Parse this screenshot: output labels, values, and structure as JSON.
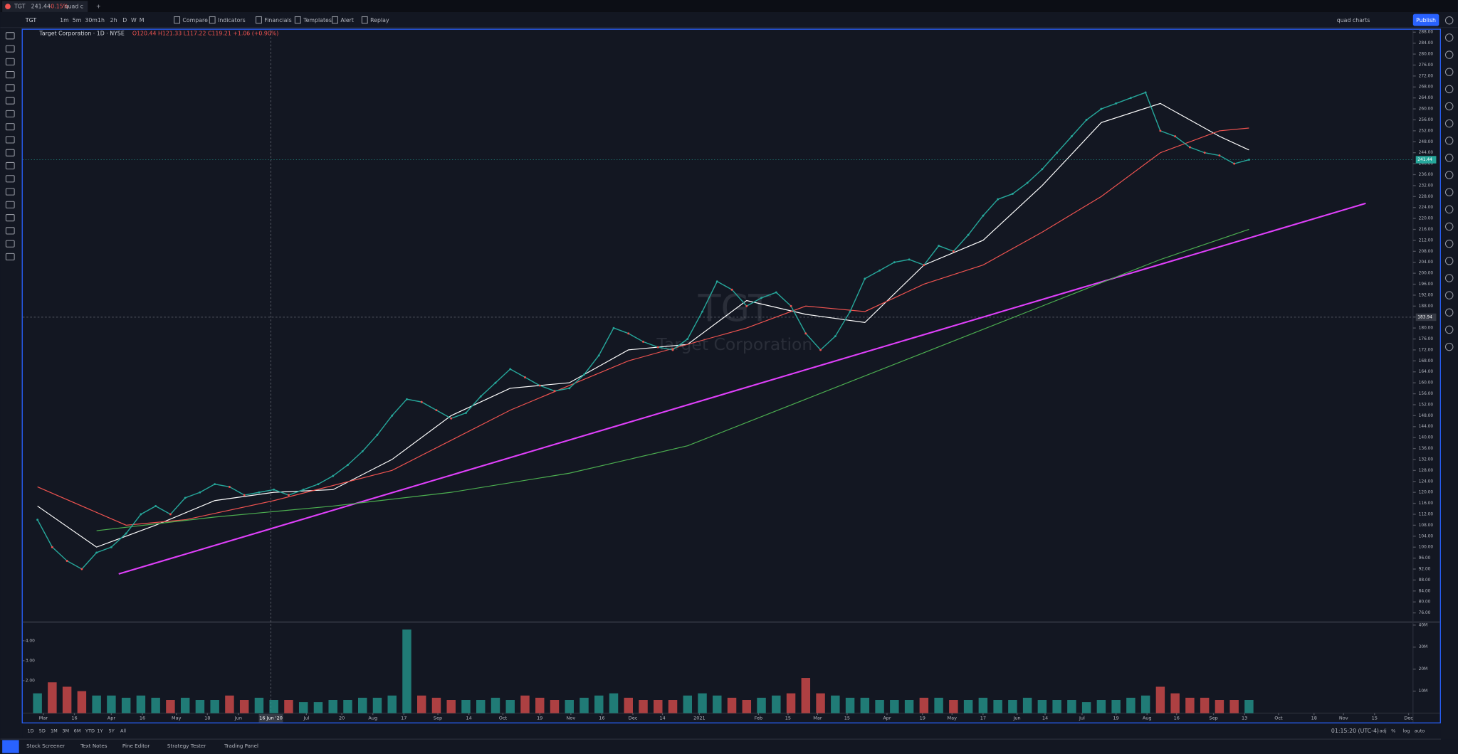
{
  "tab": {
    "symbol": "TGT",
    "price": "241.44",
    "change": "-0.15%",
    "layout": "quad c"
  },
  "toolbar": {
    "symbol": "TGT",
    "intervals": [
      "1m",
      "5m",
      "30m",
      "1h",
      "2h",
      "D",
      "W",
      "M"
    ],
    "buttons": [
      "Compare",
      "Indicators",
      "Financials",
      "Templates",
      "Alert",
      "Replay"
    ],
    "layout_name": "quad charts",
    "publish": "Publish"
  },
  "legend": {
    "title": "Target Corporation · 1D · NYSE",
    "ohlc": "O120.44 H121.33 L117.22 C119.21 +1.06 (+0.90%)"
  },
  "watermark": {
    "symbol": "TGT",
    "name": "Target Corporation"
  },
  "chart_data": [
    {
      "type": "line",
      "x": [
        0,
        1,
        2,
        3,
        4,
        5,
        6,
        7,
        8,
        9,
        10,
        11,
        12,
        13,
        14,
        15,
        16,
        17,
        18,
        19,
        20,
        21,
        22,
        23,
        24,
        25,
        26,
        27,
        28,
        29,
        30,
        31,
        32,
        33,
        34,
        35,
        36,
        37,
        38,
        39,
        40,
        41,
        42,
        43,
        44,
        45,
        46,
        47,
        48,
        49,
        50,
        51,
        52,
        53,
        54,
        55,
        56,
        57,
        58,
        59,
        60,
        61,
        62,
        63,
        64,
        65,
        66,
        67,
        68,
        69,
        70,
        71,
        72,
        73,
        74,
        75,
        76,
        77,
        78,
        79,
        80,
        81,
        82
      ],
      "series": [
        {
          "color": "#26a69a",
          "values": [
            110,
            100,
            95,
            92,
            98,
            100,
            105,
            112,
            115,
            112,
            118,
            120,
            123,
            122,
            119,
            120,
            121,
            119,
            121,
            123,
            126,
            130,
            135,
            141,
            148,
            154,
            153,
            150,
            147,
            149,
            155,
            160,
            165,
            162,
            159,
            157,
            158,
            163,
            170,
            180,
            178,
            175,
            173,
            172,
            176,
            186,
            197,
            194,
            188,
            191,
            193,
            188,
            178,
            172,
            177,
            186,
            198,
            201,
            204,
            205,
            203,
            210,
            208,
            214,
            221,
            227,
            229,
            233,
            238,
            244,
            250,
            256,
            260,
            262,
            264,
            266,
            252,
            250,
            246,
            244,
            243,
            240,
            241.44
          ]
        }
      ],
      "overlays": [
        {
          "color": "#ffffff",
          "x": [
            0,
            4,
            8,
            12,
            16,
            20,
            24,
            28,
            32,
            36,
            40,
            44,
            48,
            52,
            56,
            60,
            64,
            68,
            72,
            76,
            80,
            82
          ],
          "values": [
            115,
            100,
            108,
            117,
            120,
            121,
            132,
            148,
            158,
            160,
            172,
            174,
            190,
            185,
            182,
            203,
            212,
            232,
            255,
            262,
            250,
            245
          ]
        },
        {
          "color": "#ef5350",
          "x": [
            0,
            6,
            10,
            16,
            24,
            32,
            40,
            48,
            52,
            56,
            60,
            64,
            68,
            72,
            76,
            80,
            82
          ],
          "values": [
            122,
            108,
            110,
            117,
            128,
            150,
            168,
            180,
            188,
            186,
            196,
            203,
            215,
            228,
            244,
            252,
            253
          ]
        },
        {
          "color": "#4caf50",
          "x": [
            4,
            12,
            20,
            28,
            36,
            44,
            52,
            60,
            68,
            76,
            82
          ],
          "values": [
            106,
            111,
            115,
            120,
            127,
            137,
            154,
            171,
            188,
            205,
            216
          ]
        }
      ],
      "trendline": {
        "color": "#e040fb",
        "x": [
          5.5,
          89.9
        ],
        "values": [
          90.2,
          225.5
        ]
      },
      "last_price": {
        "value": 241.44,
        "label": "241.44"
      },
      "crosshair": {
        "x": 15.8,
        "y": 183.94,
        "x_label": "16 Jun '20",
        "y_label": "183.94"
      },
      "xlim": [
        -1,
        93.1
      ],
      "ylim": [
        73.3,
        288.9
      ],
      "xticks": [
        {
          "value": 0.4,
          "label": "Mar"
        },
        {
          "value": 2.5,
          "label": "16"
        },
        {
          "value": 5.0,
          "label": "Apr"
        },
        {
          "value": 7.1,
          "label": "16"
        },
        {
          "value": 9.4,
          "label": "May"
        },
        {
          "value": 11.5,
          "label": "18"
        },
        {
          "value": 13.6,
          "label": "Jun"
        },
        {
          "value": 18.2,
          "label": "Jul"
        },
        {
          "value": 20.6,
          "label": "20"
        },
        {
          "value": 22.7,
          "label": "Aug"
        },
        {
          "value": 24.8,
          "label": "17"
        },
        {
          "value": 27.1,
          "label": "Sep"
        },
        {
          "value": 29.2,
          "label": "14"
        },
        {
          "value": 31.5,
          "label": "Oct"
        },
        {
          "value": 34.0,
          "label": "19"
        },
        {
          "value": 36.1,
          "label": "Nov"
        },
        {
          "value": 38.2,
          "label": "16"
        },
        {
          "value": 40.3,
          "label": "Dec"
        },
        {
          "value": 42.3,
          "label": "14"
        },
        {
          "value": 44.8,
          "label": "2021"
        },
        {
          "value": 48.8,
          "label": "Feb"
        },
        {
          "value": 50.8,
          "label": "15"
        },
        {
          "value": 52.8,
          "label": "Mar"
        },
        {
          "value": 54.8,
          "label": "15"
        },
        {
          "value": 57.5,
          "label": "Apr"
        },
        {
          "value": 59.9,
          "label": "19"
        },
        {
          "value": 61.9,
          "label": "May"
        },
        {
          "value": 64.0,
          "label": "17"
        },
        {
          "value": 66.3,
          "label": "Jun"
        },
        {
          "value": 68.2,
          "label": "14"
        },
        {
          "value": 70.7,
          "label": "Jul"
        },
        {
          "value": 73.0,
          "label": "19"
        },
        {
          "value": 75.1,
          "label": "Aug"
        },
        {
          "value": 77.1,
          "label": "16"
        },
        {
          "value": 79.6,
          "label": "Sep"
        },
        {
          "value": 81.7,
          "label": "13"
        },
        {
          "value": 84.0,
          "label": "Oct"
        },
        {
          "value": 86.4,
          "label": "18"
        },
        {
          "value": 88.4,
          "label": "Nov"
        },
        {
          "value": 90.5,
          "label": "15"
        },
        {
          "value": 92.8,
          "label": "Dec"
        }
      ],
      "yticks": [
        {
          "value": 76,
          "label": "76.00"
        },
        {
          "value": 80,
          "label": "80.00"
        },
        {
          "value": 84,
          "label": "84.00"
        },
        {
          "value": 88,
          "label": "88.00"
        },
        {
          "value": 92,
          "label": "92.00"
        },
        {
          "value": 96,
          "label": "96.00"
        },
        {
          "value": 100,
          "label": "100.00"
        },
        {
          "value": 104,
          "label": "104.00"
        },
        {
          "value": 108,
          "label": "108.00"
        },
        {
          "value": 112,
          "label": "112.00"
        },
        {
          "value": 116,
          "label": "116.00"
        },
        {
          "value": 120,
          "label": "120.00"
        },
        {
          "value": 124,
          "label": "124.00"
        },
        {
          "value": 128,
          "label": "128.00"
        },
        {
          "value": 132,
          "label": "132.00"
        },
        {
          "value": 136,
          "label": "136.00"
        },
        {
          "value": 140,
          "label": "140.00"
        },
        {
          "value": 144,
          "label": "144.00"
        },
        {
          "value": 148,
          "label": "148.00"
        },
        {
          "value": 152,
          "label": "152.00"
        },
        {
          "value": 156,
          "label": "156.00"
        },
        {
          "value": 160,
          "label": "160.00"
        },
        {
          "value": 164,
          "label": "164.00"
        },
        {
          "value": 168,
          "label": "168.00"
        },
        {
          "value": 172,
          "label": "172.00"
        },
        {
          "value": 176,
          "label": "176.00"
        },
        {
          "value": 180,
          "label": "180.00"
        },
        {
          "value": 184,
          "label": "184.00"
        },
        {
          "value": 188,
          "label": "188.00"
        },
        {
          "value": 192,
          "label": "192.00"
        },
        {
          "value": 196,
          "label": "196.00"
        },
        {
          "value": 200,
          "label": "200.00"
        },
        {
          "value": 204,
          "label": "204.00"
        },
        {
          "value": 208,
          "label": "208.00"
        },
        {
          "value": 212,
          "label": "212.00"
        },
        {
          "value": 216,
          "label": "216.00"
        },
        {
          "value": 220,
          "label": "220.00"
        },
        {
          "value": 224,
          "label": "224.00"
        },
        {
          "value": 228,
          "label": "228.00"
        },
        {
          "value": 232,
          "label": "232.00"
        },
        {
          "value": 236,
          "label": "236.00"
        },
        {
          "value": 240,
          "label": "240.00"
        },
        {
          "value": 244,
          "label": "244.00"
        },
        {
          "value": 248,
          "label": "248.00"
        },
        {
          "value": 252,
          "label": "252.00"
        },
        {
          "value": 256,
          "label": "256.00"
        },
        {
          "value": 260,
          "label": "260.00"
        },
        {
          "value": 264,
          "label": "264.00"
        },
        {
          "value": 268,
          "label": "268.00"
        },
        {
          "value": 272,
          "label": "272.00"
        },
        {
          "value": 276,
          "label": "276.00"
        },
        {
          "value": 280,
          "label": "280.00"
        },
        {
          "value": 284,
          "label": "284.00"
        },
        {
          "value": 288,
          "label": "288.00"
        }
      ]
    },
    {
      "type": "bar",
      "values": [
        9,
        14,
        12,
        10,
        8,
        8,
        7,
        8,
        7,
        6,
        7,
        6,
        6,
        8,
        6,
        7,
        6,
        6,
        5,
        5,
        6,
        6,
        7,
        7,
        8,
        38,
        8,
        7,
        6,
        6,
        6,
        7,
        6,
        8,
        7,
        6,
        6,
        7,
        8,
        9,
        7,
        6,
        6,
        6,
        8,
        9,
        8,
        7,
        6,
        7,
        8,
        9,
        16,
        9,
        8,
        7,
        7,
        6,
        6,
        6,
        7,
        7,
        6,
        6,
        7,
        6,
        6,
        7,
        6,
        6,
        6,
        5,
        6,
        6,
        7,
        8,
        12,
        9,
        7,
        7,
        6,
        6,
        6
      ],
      "up_color": "#26a69a",
      "down_color": "#ef5350",
      "ylim": [
        0,
        40.5
      ],
      "yticks": [
        {
          "value": 10,
          "label": "10M"
        },
        {
          "value": 20,
          "label": "20M"
        },
        {
          "value": 30,
          "label": "30M"
        },
        {
          "value": 40,
          "label": "40M"
        }
      ],
      "y2lim": [
        0.37,
        4.84
      ],
      "y2ticks": [
        {
          "value": 2,
          "label": "2.00"
        },
        {
          "value": 3,
          "label": "3.00"
        },
        {
          "value": 4,
          "label": "4.00"
        }
      ]
    }
  ],
  "bottom_bar": {
    "ranges": [
      "1D",
      "5D",
      "1M",
      "3M",
      "6M",
      "YTD",
      "1Y",
      "5Y",
      "All"
    ],
    "time": "01:15:20 (UTC-4)",
    "scale_options": [
      "adj",
      "%",
      "log",
      "auto"
    ]
  },
  "panels": [
    "Stock Screener",
    "Text Notes",
    "Pine Editor",
    "Strategy Tester",
    "Trading Panel"
  ]
}
